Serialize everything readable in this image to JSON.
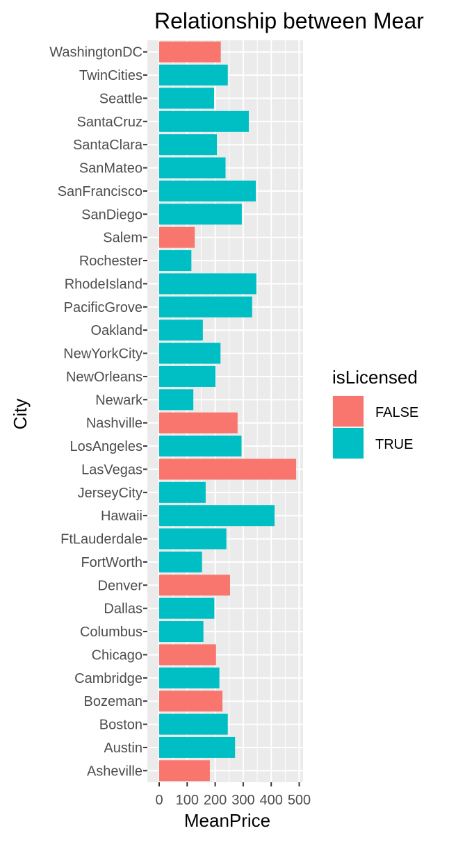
{
  "chart_data": {
    "type": "bar",
    "orientation": "horizontal",
    "title": "Relationship between Mear",
    "xlabel": "MeanPrice",
    "ylabel": "City",
    "xlim": [
      0,
      500
    ],
    "x_ticks": [
      0,
      100,
      200,
      300,
      400,
      500
    ],
    "x_tick_labels": [
      "0",
      "100",
      "200",
      "300",
      "400",
      "500"
    ],
    "grid": true,
    "legend": {
      "title": "isLicensed",
      "position": "right",
      "entries": [
        {
          "label": "FALSE",
          "color": "#F8766D"
        },
        {
          "label": "TRUE",
          "color": "#00BFC4"
        }
      ]
    },
    "colors": {
      "FALSE": "#F8766D",
      "TRUE": "#00BFC4",
      "panel": "#EBEBEB",
      "grid": "#FFFFFF"
    },
    "categories": [
      "Asheville",
      "Austin",
      "Boston",
      "Bozeman",
      "Cambridge",
      "Chicago",
      "Columbus",
      "Dallas",
      "Denver",
      "FortWorth",
      "FtLauderdale",
      "Hawaii",
      "JerseyCity",
      "LasVegas",
      "LosAngeles",
      "Nashville",
      "Newark",
      "NewOrleans",
      "NewYorkCity",
      "Oakland",
      "PacificGrove",
      "RhodeIsland",
      "Rochester",
      "Salem",
      "SanDiego",
      "SanFrancisco",
      "SanMateo",
      "SantaClara",
      "SantaCruz",
      "Seattle",
      "TwinCities",
      "WashingtonDC"
    ],
    "values": [
      181,
      271,
      245,
      226,
      215,
      203,
      158,
      197,
      253,
      153,
      240,
      412,
      166,
      489,
      294,
      280,
      122,
      201,
      219,
      156,
      332,
      347,
      115,
      127,
      295,
      345,
      237,
      206,
      320,
      196,
      245,
      220
    ],
    "isLicensed": [
      "FALSE",
      "TRUE",
      "TRUE",
      "FALSE",
      "TRUE",
      "FALSE",
      "TRUE",
      "TRUE",
      "FALSE",
      "TRUE",
      "TRUE",
      "TRUE",
      "TRUE",
      "FALSE",
      "TRUE",
      "FALSE",
      "TRUE",
      "TRUE",
      "TRUE",
      "TRUE",
      "TRUE",
      "TRUE",
      "TRUE",
      "FALSE",
      "TRUE",
      "TRUE",
      "TRUE",
      "TRUE",
      "TRUE",
      "TRUE",
      "TRUE",
      "FALSE"
    ]
  }
}
